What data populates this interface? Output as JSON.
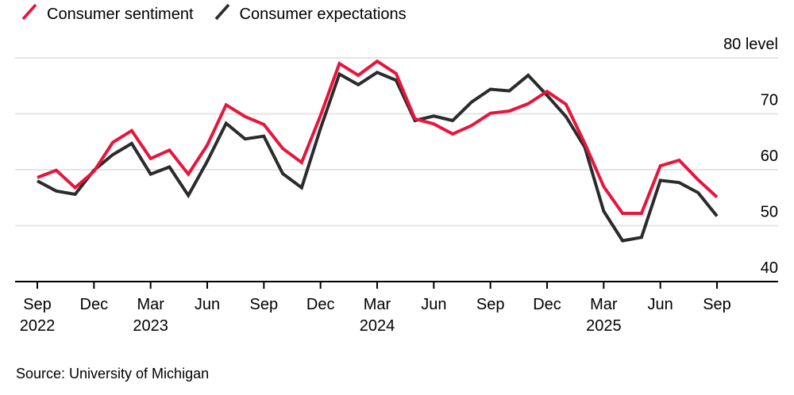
{
  "legend": {
    "items": [
      {
        "label": "Consumer sentiment",
        "color": "#e8143c",
        "icon": "slash-icon"
      },
      {
        "label": "Consumer expectations",
        "color": "#2b2b2b",
        "icon": "slash-icon"
      }
    ]
  },
  "source": "Source: University of Michigan",
  "colors": {
    "sentiment_red": "#e8143c",
    "expectations_black": "#2b2b2b",
    "gridline_gray": "#e4e4e4",
    "axis_black": "#000000",
    "text_black": "#000000"
  },
  "chart_data": {
    "type": "line",
    "title": "",
    "xlabel": "",
    "ylabel": "level",
    "grid": "horizontal",
    "legend_position": "top-left",
    "months": [
      "2022-09",
      "2022-10",
      "2022-11",
      "2022-12",
      "2023-01",
      "2023-02",
      "2023-03",
      "2023-04",
      "2023-05",
      "2023-06",
      "2023-07",
      "2023-08",
      "2023-09",
      "2023-10",
      "2023-11",
      "2023-12",
      "2024-01",
      "2024-02",
      "2024-03",
      "2024-04",
      "2024-05",
      "2024-06",
      "2024-07",
      "2024-08",
      "2024-09",
      "2024-10",
      "2024-11",
      "2024-12",
      "2025-01",
      "2025-02",
      "2025-03",
      "2025-04",
      "2025-05",
      "2025-06",
      "2025-07",
      "2025-08",
      "2025-09"
    ],
    "series": [
      {
        "name": "Consumer sentiment",
        "color": "#e8143c",
        "values": [
          58.6,
          59.9,
          56.8,
          59.7,
          64.9,
          67.0,
          62.0,
          63.5,
          59.2,
          64.4,
          71.6,
          69.5,
          68.1,
          63.8,
          61.3,
          69.7,
          79.0,
          76.9,
          79.4,
          77.2,
          69.1,
          68.2,
          66.4,
          67.9,
          70.1,
          70.5,
          71.8,
          74.0,
          71.7,
          64.7,
          57.0,
          52.2,
          52.2,
          60.7,
          61.7,
          58.2,
          55.1
        ]
      },
      {
        "name": "Consumer expectations",
        "color": "#2b2b2b",
        "values": [
          58.0,
          56.2,
          55.6,
          59.9,
          62.7,
          64.7,
          59.2,
          60.5,
          55.4,
          61.5,
          68.3,
          65.5,
          66.0,
          59.3,
          56.8,
          67.4,
          77.1,
          75.2,
          77.4,
          76.0,
          68.8,
          69.6,
          68.8,
          72.1,
          74.4,
          74.1,
          76.9,
          73.3,
          69.5,
          64.0,
          52.6,
          47.3,
          47.9,
          58.1,
          57.7,
          55.9,
          51.7
        ]
      }
    ],
    "y_axis": {
      "side": "right",
      "ylim": [
        40,
        80
      ],
      "ticks": [
        {
          "value": 80,
          "label": "80 level"
        },
        {
          "value": 70,
          "label": "70"
        },
        {
          "value": 60,
          "label": "60"
        },
        {
          "value": 50,
          "label": "50"
        },
        {
          "value": 40,
          "label": "40"
        }
      ]
    },
    "x_ticks": [
      {
        "month": "Sep",
        "year": "2022"
      },
      {
        "month": "Dec",
        "year": ""
      },
      {
        "month": "Mar",
        "year": "2023"
      },
      {
        "month": "Jun",
        "year": ""
      },
      {
        "month": "Sep",
        "year": ""
      },
      {
        "month": "Dec",
        "year": ""
      },
      {
        "month": "Mar",
        "year": "2024"
      },
      {
        "month": "Jun",
        "year": ""
      },
      {
        "month": "Sep",
        "year": ""
      },
      {
        "month": "Dec",
        "year": ""
      },
      {
        "month": "Mar",
        "year": "2025"
      },
      {
        "month": "Jun",
        "year": ""
      },
      {
        "month": "Sep",
        "year": ""
      }
    ]
  }
}
